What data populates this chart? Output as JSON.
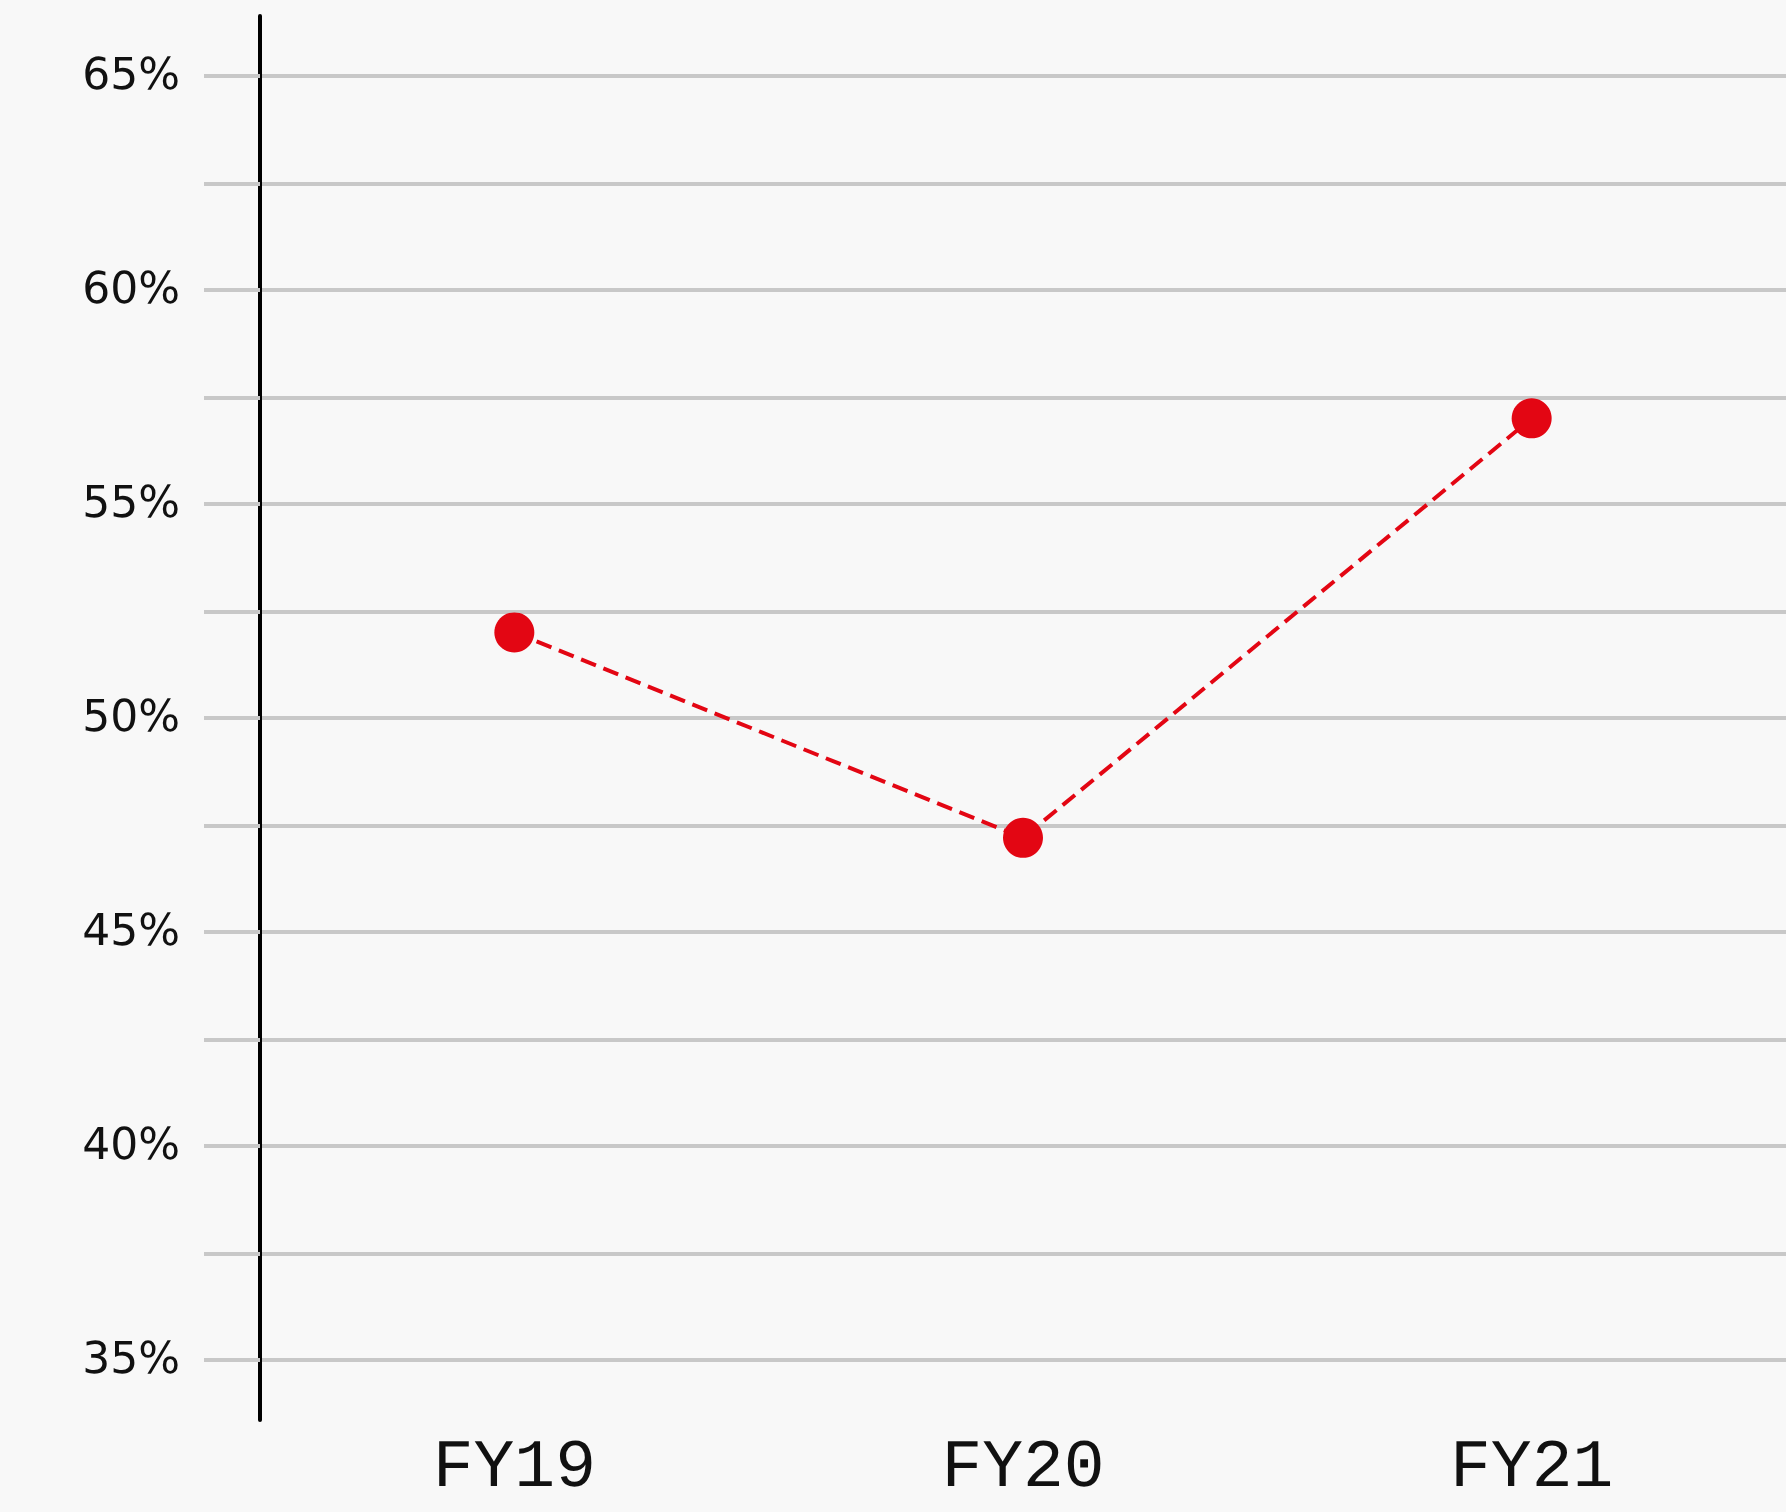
{
  "chart_data": {
    "type": "line",
    "categories": [
      "FY19",
      "FY20",
      "FY21"
    ],
    "series": [
      {
        "color": "#e30613",
        "values": [
          52,
          47.2,
          57
        ]
      }
    ],
    "ylim": [
      33.6,
      66.4
    ],
    "yticks": [
      {
        "value": 35,
        "label": "35%"
      },
      {
        "value": 37.5,
        "label": null
      },
      {
        "value": 40,
        "label": "40%"
      },
      {
        "value": 42.5,
        "label": null
      },
      {
        "value": 45,
        "label": "45%"
      },
      {
        "value": 47.5,
        "label": null
      },
      {
        "value": 50,
        "label": "50%"
      },
      {
        "value": 52.5,
        "label": null
      },
      {
        "value": 55,
        "label": "55%"
      },
      {
        "value": 57.5,
        "label": null
      },
      {
        "value": 60,
        "label": "60%"
      },
      {
        "value": 62.5,
        "label": null
      },
      {
        "value": 65,
        "label": "65%"
      }
    ],
    "grid": "y",
    "marker": "circle",
    "line_style": "dashed"
  }
}
